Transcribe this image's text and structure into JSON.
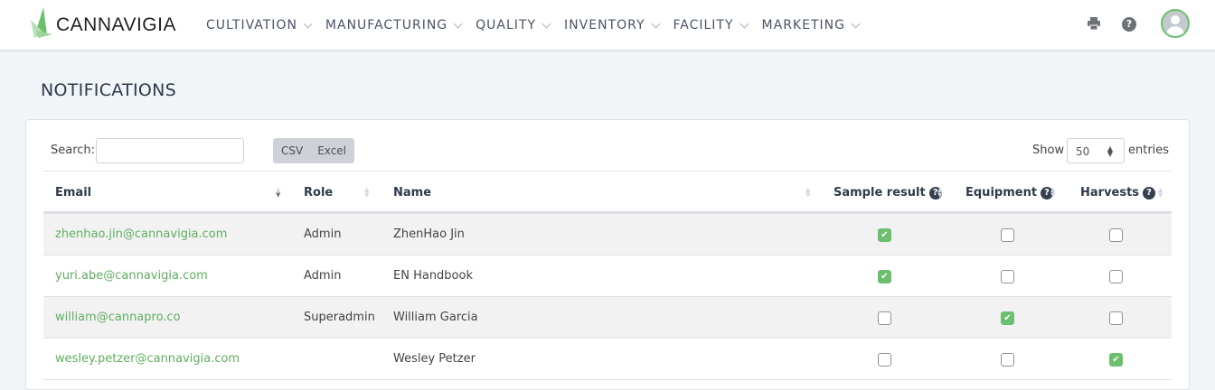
{
  "app": {
    "logo_text": "CANNAVIGIA",
    "brand_color": "#6cbf6e"
  },
  "nav": [
    "CULTIVATION",
    "MANUFACTURING",
    "QUALITY",
    "INVENTORY",
    "FACILITY",
    "MARKETING"
  ],
  "header_icons": [
    "print-icon",
    "help-icon",
    "user-avatar"
  ],
  "page_title": "NOTIFICATIONS",
  "toolbar": {
    "search_label": "Search:",
    "search_value": "",
    "csv": "CSV",
    "excel": "Excel",
    "show": "Show",
    "entries_value": "50",
    "entries": "entries"
  },
  "columns": [
    "Email",
    "Role",
    "Name",
    "Sample result",
    "Equipment",
    "Harvests"
  ],
  "rows": [
    {
      "email": "zhenhao.jin@cannavigia.com",
      "role": "Admin",
      "name": "ZhenHao Jin",
      "sample": true,
      "equipment": false,
      "harvests": false
    },
    {
      "email": "yuri.abe@cannavigia.com",
      "role": "Admin",
      "name": "EN Handbook",
      "sample": true,
      "equipment": false,
      "harvests": false
    },
    {
      "email": "william@cannapro.co",
      "role": "Superadmin",
      "name": "William Garcia",
      "sample": false,
      "equipment": true,
      "harvests": false
    },
    {
      "email": "wesley.petzer@cannavigia.com",
      "role": "",
      "name": "Wesley Petzer",
      "sample": false,
      "equipment": false,
      "harvests": true
    }
  ]
}
